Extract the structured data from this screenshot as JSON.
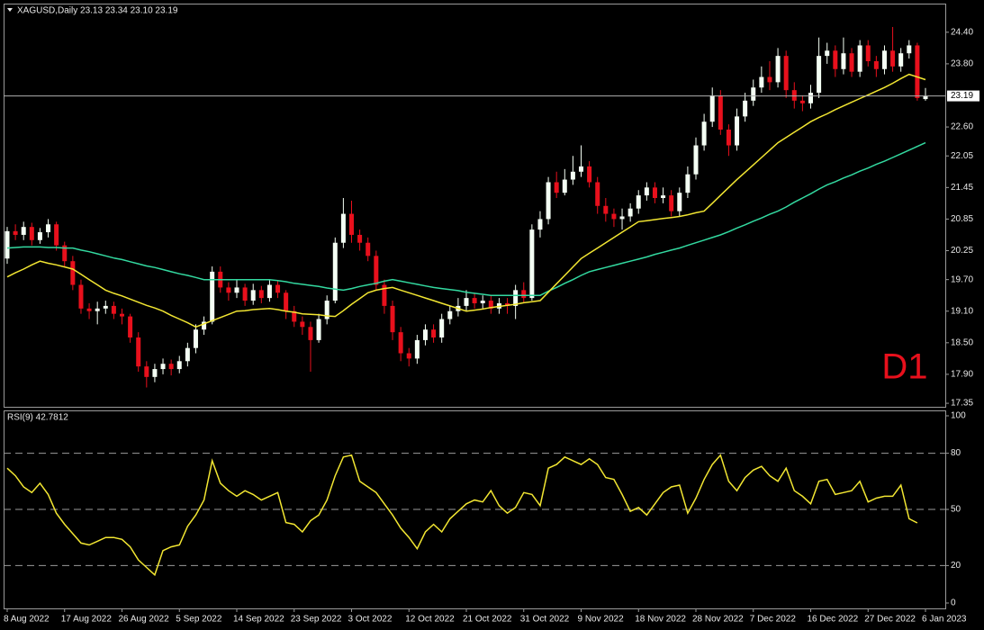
{
  "chart_data": [
    {
      "type": "candlestick",
      "title": "XAGUSD,Daily  23.13 23.34 23.10 23.19",
      "annotation": "D1",
      "categories": [
        "8 Aug 2022",
        null,
        null,
        null,
        null,
        null,
        null,
        "17 Aug 2022",
        null,
        null,
        null,
        null,
        null,
        null,
        "26 Aug 2022",
        null,
        null,
        null,
        null,
        null,
        null,
        "5 Sep 2022",
        null,
        null,
        null,
        null,
        null,
        null,
        "14 Sep 2022",
        null,
        null,
        null,
        null,
        null,
        null,
        "23 Sep 2022",
        null,
        null,
        null,
        null,
        null,
        null,
        "3 Oct 2022",
        null,
        null,
        null,
        null,
        null,
        null,
        "12 Oct 2022",
        null,
        null,
        null,
        null,
        null,
        null,
        "21 Oct 2022",
        null,
        null,
        null,
        null,
        null,
        null,
        "31 Oct 2022",
        null,
        null,
        null,
        null,
        null,
        null,
        "9 Nov 2022",
        null,
        null,
        null,
        null,
        null,
        null,
        "18 Nov 2022",
        null,
        null,
        null,
        null,
        null,
        null,
        "28 Nov 2022",
        null,
        null,
        null,
        null,
        null,
        null,
        "7 Dec 2022",
        null,
        null,
        null,
        null,
        null,
        null,
        "16 Dec 2022",
        null,
        null,
        null,
        null,
        null,
        null,
        "27 Dec 2022",
        null,
        null,
        null,
        null,
        null,
        null,
        "6 Jan 2023"
      ],
      "open": [
        20.1,
        20.62,
        20.55,
        20.7,
        20.45,
        20.6,
        20.75,
        20.35,
        20.05,
        19.6,
        19.15,
        19.1,
        19.15,
        19.2,
        19.05,
        19.0,
        18.6,
        18.05,
        17.85,
        18.0,
        18.1,
        18.0,
        18.15,
        18.4,
        18.75,
        18.9,
        19.85,
        19.55,
        19.45,
        19.55,
        19.3,
        19.5,
        19.35,
        19.6,
        19.45,
        19.1,
        18.9,
        18.8,
        18.55,
        18.95,
        19.3,
        20.4,
        20.95,
        20.55,
        20.4,
        20.15,
        19.6,
        19.2,
        18.7,
        18.3,
        18.2,
        18.55,
        18.75,
        18.6,
        18.95,
        19.1,
        19.2,
        19.35,
        19.25,
        19.3,
        19.15,
        19.25,
        19.2,
        19.5,
        19.35,
        20.65,
        20.85,
        21.55,
        21.35,
        21.6,
        21.75,
        21.85,
        21.55,
        21.1,
        20.95,
        20.85,
        20.9,
        21.05,
        21.3,
        21.45,
        21.25,
        21.3,
        21.0,
        21.35,
        21.7,
        22.25,
        22.7,
        23.2,
        22.55,
        22.25,
        22.8,
        23.1,
        23.35,
        23.55,
        23.45,
        23.95,
        23.3,
        23.1,
        23.05,
        23.25,
        23.95,
        24.05,
        23.7,
        24.0,
        23.65,
        24.15,
        23.85,
        23.7,
        24.05,
        23.75,
        24.0,
        24.15,
        23.13
      ],
      "high": [
        20.7,
        20.75,
        20.8,
        20.78,
        20.68,
        20.85,
        20.8,
        20.42,
        20.15,
        19.7,
        19.25,
        19.28,
        19.3,
        19.28,
        19.15,
        19.05,
        18.7,
        18.15,
        18.1,
        18.2,
        18.18,
        18.25,
        18.5,
        18.85,
        19.0,
        19.95,
        19.95,
        19.65,
        19.7,
        19.62,
        19.62,
        19.58,
        19.7,
        19.68,
        19.5,
        19.2,
        19.0,
        18.9,
        19.05,
        19.4,
        20.5,
        21.25,
        21.2,
        20.65,
        20.5,
        20.25,
        19.7,
        19.3,
        18.8,
        18.4,
        18.65,
        18.85,
        18.85,
        19.05,
        19.2,
        19.35,
        19.5,
        19.45,
        19.4,
        19.4,
        19.35,
        19.35,
        19.6,
        19.65,
        20.75,
        21.0,
        21.65,
        21.75,
        21.8,
        22.05,
        22.25,
        21.95,
        21.65,
        21.25,
        21.05,
        21.05,
        21.15,
        21.4,
        21.55,
        21.55,
        21.45,
        21.4,
        21.45,
        21.85,
        22.4,
        22.85,
        23.35,
        23.3,
        22.65,
        22.95,
        23.25,
        23.5,
        23.75,
        23.85,
        24.1,
        24.05,
        23.45,
        23.2,
        23.4,
        24.3,
        24.2,
        24.15,
        24.3,
        24.1,
        24.25,
        24.25,
        23.95,
        24.15,
        24.5,
        24.1,
        24.25,
        24.2,
        23.34
      ],
      "low": [
        20.0,
        20.45,
        20.45,
        20.35,
        20.38,
        20.5,
        20.25,
        19.95,
        19.5,
        19.05,
        18.95,
        18.85,
        19.05,
        18.95,
        18.85,
        18.5,
        17.95,
        17.65,
        17.75,
        17.9,
        17.88,
        17.92,
        18.05,
        18.3,
        18.65,
        18.85,
        19.45,
        19.3,
        19.35,
        19.2,
        19.22,
        19.25,
        19.28,
        19.35,
        18.95,
        18.8,
        18.65,
        17.95,
        18.5,
        18.85,
        19.25,
        20.3,
        20.4,
        20.25,
        20.05,
        19.5,
        19.05,
        18.55,
        18.15,
        18.05,
        18.1,
        18.45,
        18.5,
        18.5,
        18.85,
        19.0,
        19.1,
        19.15,
        19.15,
        19.05,
        19.05,
        19.05,
        18.95,
        19.25,
        19.3,
        20.5,
        20.75,
        21.25,
        21.3,
        21.5,
        21.65,
        21.45,
        20.95,
        20.8,
        20.7,
        20.65,
        20.8,
        20.95,
        21.2,
        21.15,
        21.15,
        20.9,
        20.9,
        21.25,
        21.6,
        22.15,
        22.6,
        22.45,
        22.05,
        22.15,
        22.7,
        23.0,
        23.25,
        23.3,
        23.35,
        23.15,
        22.95,
        22.9,
        22.95,
        23.15,
        23.8,
        23.55,
        23.6,
        23.55,
        23.55,
        23.75,
        23.55,
        23.6,
        23.65,
        23.65,
        23.9,
        23.1,
        23.1
      ],
      "close": [
        20.62,
        20.55,
        20.7,
        20.45,
        20.6,
        20.75,
        20.35,
        20.05,
        19.6,
        19.15,
        19.1,
        19.15,
        19.2,
        19.05,
        19.0,
        18.6,
        18.05,
        17.85,
        18.0,
        18.1,
        18.0,
        18.15,
        18.4,
        18.75,
        18.9,
        19.85,
        19.55,
        19.45,
        19.55,
        19.3,
        19.5,
        19.35,
        19.6,
        19.45,
        19.1,
        18.9,
        18.8,
        18.55,
        18.95,
        19.3,
        20.4,
        20.95,
        20.55,
        20.4,
        20.15,
        19.6,
        19.2,
        18.7,
        18.3,
        18.2,
        18.55,
        18.75,
        18.6,
        18.95,
        19.1,
        19.2,
        19.35,
        19.25,
        19.3,
        19.15,
        19.25,
        19.2,
        19.5,
        19.35,
        20.65,
        20.85,
        21.55,
        21.35,
        21.6,
        21.75,
        21.85,
        21.55,
        21.1,
        20.95,
        20.85,
        20.9,
        21.05,
        21.3,
        21.45,
        21.25,
        21.3,
        21.0,
        21.35,
        21.7,
        22.25,
        22.7,
        23.2,
        22.55,
        22.25,
        22.8,
        23.1,
        23.35,
        23.55,
        23.45,
        23.95,
        23.3,
        23.1,
        23.05,
        23.25,
        23.95,
        24.05,
        23.7,
        24.0,
        23.65,
        24.15,
        23.85,
        23.7,
        24.05,
        23.75,
        24.0,
        24.15,
        23.15,
        23.19
      ],
      "up_color": "#f4fff4",
      "down_color": "#e8101c",
      "overlays": [
        {
          "color": "#33d9a0",
          "values": [
            20.3,
            20.31,
            20.32,
            20.32,
            20.32,
            20.31,
            20.31,
            20.3,
            20.3,
            20.26,
            20.23,
            20.19,
            20.15,
            20.11,
            20.08,
            20.04,
            20.0,
            19.96,
            19.93,
            19.89,
            19.85,
            19.81,
            19.78,
            19.74,
            19.7,
            19.7,
            19.7,
            19.7,
            19.7,
            19.7,
            19.7,
            19.7,
            19.7,
            19.68,
            19.66,
            19.63,
            19.61,
            19.59,
            19.57,
            19.54,
            19.52,
            19.5,
            19.53,
            19.57,
            19.6,
            19.63,
            19.67,
            19.7,
            19.67,
            19.64,
            19.61,
            19.58,
            19.55,
            19.53,
            19.51,
            19.49,
            19.46,
            19.44,
            19.42,
            19.4,
            19.4,
            19.4,
            19.4,
            19.4,
            19.4,
            19.4,
            19.48,
            19.55,
            19.63,
            19.7,
            19.78,
            19.85,
            19.89,
            19.93,
            19.97,
            20.01,
            20.05,
            20.09,
            20.13,
            20.18,
            20.22,
            20.26,
            20.3,
            20.35,
            20.4,
            20.45,
            20.5,
            20.55,
            20.61,
            20.68,
            20.74,
            20.81,
            20.87,
            20.94,
            21.0,
            21.08,
            21.17,
            21.25,
            21.33,
            21.42,
            21.5,
            21.56,
            21.63,
            21.69,
            21.76,
            21.82,
            21.89,
            21.95,
            22.02,
            22.09,
            22.16,
            22.23,
            22.3
          ]
        },
        {
          "color": "#f2e632",
          "values": [
            19.75,
            19.83,
            19.9,
            19.98,
            20.05,
            20.01,
            19.98,
            19.94,
            19.9,
            19.8,
            19.7,
            19.6,
            19.5,
            19.44,
            19.39,
            19.33,
            19.27,
            19.21,
            19.16,
            19.1,
            19.02,
            18.95,
            18.88,
            18.8,
            18.86,
            18.92,
            18.98,
            19.04,
            19.1,
            19.11,
            19.13,
            19.14,
            19.15,
            19.13,
            19.1,
            19.08,
            19.05,
            19.04,
            19.03,
            19.01,
            19.0,
            19.11,
            19.23,
            19.34,
            19.45,
            19.5,
            19.53,
            19.55,
            19.5,
            19.45,
            19.4,
            19.35,
            19.3,
            19.25,
            19.2,
            19.15,
            19.1,
            19.12,
            19.14,
            19.17,
            19.19,
            19.21,
            19.23,
            19.26,
            19.28,
            19.3,
            19.46,
            19.62,
            19.78,
            19.94,
            20.1,
            20.2,
            20.3,
            20.4,
            20.5,
            20.6,
            20.7,
            20.8,
            20.82,
            20.84,
            20.86,
            20.88,
            20.9,
            20.93,
            20.97,
            21.0,
            21.15,
            21.3,
            21.45,
            21.6,
            21.74,
            21.88,
            22.02,
            22.16,
            22.3,
            22.4,
            22.5,
            22.6,
            22.7,
            22.78,
            22.85,
            22.93,
            23.0,
            23.07,
            23.14,
            23.21,
            23.28,
            23.35,
            23.43,
            23.52,
            23.6,
            23.55,
            23.5
          ]
        }
      ],
      "last_price": 23.19,
      "ylim": [
        17.3,
        24.91
      ],
      "yticks": [
        17.35,
        {
          "value": 17.9,
          "label": "17.90"
        },
        {
          "value": 18.5,
          "label": "18.50"
        },
        {
          "value": 19.1,
          "label": "19.10"
        },
        {
          "value": 19.7,
          "label": "19.70"
        },
        20.25,
        20.85,
        21.45,
        22.05,
        {
          "value": 22.6,
          "label": "22.60"
        },
        {
          "value": 23.8,
          "label": "23.80"
        },
        {
          "value": 24.4,
          "label": "24.40"
        }
      ],
      "grid": false
    },
    {
      "type": "line",
      "title": "RSI(9) 42.7812",
      "color": "#f2e632",
      "values": [
        72,
        68,
        62,
        59,
        64,
        58,
        48,
        42,
        37,
        32,
        31,
        33,
        35,
        35,
        34,
        30,
        23,
        19,
        15,
        28,
        30,
        31,
        41,
        47,
        55,
        76,
        64,
        60,
        57,
        60,
        58,
        55,
        57,
        59,
        43,
        42,
        38,
        44,
        47,
        55,
        68,
        78,
        79,
        65,
        62,
        59,
        53,
        47,
        40,
        35,
        29,
        38,
        42,
        38,
        45,
        49,
        53,
        55,
        54,
        60,
        52,
        48,
        51,
        59,
        58,
        52,
        72,
        74,
        78,
        76,
        74,
        77,
        74,
        67,
        66,
        58,
        49,
        51,
        47,
        53,
        59,
        62,
        63,
        48,
        56,
        66,
        74,
        79,
        65,
        60,
        67,
        71,
        73,
        68,
        65,
        72,
        60,
        57,
        53,
        65,
        66,
        58,
        59,
        60,
        65,
        54,
        56,
        57,
        57,
        63,
        45,
        42.7812
      ],
      "ylim": [
        0,
        100
      ],
      "yticks": [
        0,
        20,
        50,
        80,
        100
      ],
      "grid": "dashed"
    }
  ]
}
